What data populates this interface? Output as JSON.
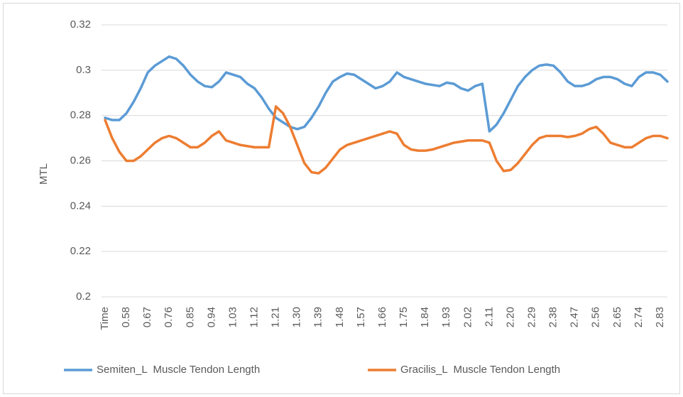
{
  "chart_data": {
    "type": "line",
    "ylabel": "MTL",
    "categories": [
      "Time",
      null,
      null,
      "0.58",
      null,
      null,
      "0.67",
      null,
      null,
      "0.76",
      null,
      null,
      "0.85",
      null,
      null,
      "0.94",
      null,
      null,
      "1.03",
      null,
      null,
      "1.12",
      null,
      null,
      "1.21",
      null,
      null,
      "1.30",
      null,
      null,
      "1.39",
      null,
      null,
      "1.48",
      null,
      null,
      "1.57",
      null,
      null,
      "1.66",
      null,
      null,
      "1.75",
      null,
      null,
      "1.84",
      null,
      null,
      "1.93",
      null,
      null,
      "2.02",
      null,
      null,
      "2.11",
      null,
      null,
      "2.20",
      null,
      null,
      "2.29",
      null,
      null,
      "2.38",
      null,
      null,
      "2.47",
      null,
      null,
      "2.56",
      null,
      null,
      "2.65",
      null,
      null,
      "2.74",
      null,
      null,
      "2.83",
      null
    ],
    "series": [
      {
        "name": "Semiten_L  Muscle Tendon Length",
        "color": "#5b9bd5",
        "values": [
          0.279,
          0.278,
          0.278,
          0.281,
          0.286,
          0.292,
          0.299,
          0.302,
          0.304,
          0.306,
          0.305,
          0.302,
          0.298,
          0.295,
          0.293,
          0.2925,
          0.295,
          0.299,
          0.298,
          0.297,
          0.294,
          0.292,
          0.288,
          0.283,
          0.279,
          0.277,
          0.275,
          0.274,
          0.275,
          0.279,
          0.284,
          0.29,
          0.295,
          0.297,
          0.2985,
          0.298,
          0.296,
          0.294,
          0.292,
          0.293,
          0.295,
          0.299,
          0.297,
          0.296,
          0.295,
          0.294,
          0.2935,
          0.293,
          0.2945,
          0.294,
          0.292,
          0.291,
          0.293,
          0.294,
          0.273,
          0.276,
          0.281,
          0.287,
          0.293,
          0.297,
          0.3,
          0.302,
          0.3025,
          0.302,
          0.299,
          0.295,
          0.293,
          0.293,
          0.294,
          0.296,
          0.297,
          0.297,
          0.296,
          0.294,
          0.293,
          0.297,
          0.299,
          0.299,
          0.298,
          0.295
        ]
      },
      {
        "name": "Gracilis_L  Muscle Tendon Length",
        "color": "#ed7d31",
        "values": [
          0.278,
          0.27,
          0.264,
          0.26,
          0.26,
          0.262,
          0.265,
          0.268,
          0.27,
          0.271,
          0.27,
          0.268,
          0.266,
          0.266,
          0.268,
          0.271,
          0.273,
          0.269,
          0.268,
          0.267,
          0.2665,
          0.266,
          0.266,
          0.266,
          0.284,
          0.281,
          0.275,
          0.267,
          0.259,
          0.255,
          0.2545,
          0.257,
          0.261,
          0.265,
          0.267,
          0.268,
          0.269,
          0.27,
          0.271,
          0.272,
          0.273,
          0.272,
          0.267,
          0.265,
          0.2645,
          0.2645,
          0.265,
          0.266,
          0.267,
          0.268,
          0.2685,
          0.269,
          0.269,
          0.269,
          0.268,
          0.26,
          0.2555,
          0.256,
          0.259,
          0.263,
          0.267,
          0.27,
          0.271,
          0.271,
          0.271,
          0.2705,
          0.271,
          0.272,
          0.274,
          0.275,
          0.272,
          0.268,
          0.267,
          0.266,
          0.266,
          0.268,
          0.27,
          0.271,
          0.271,
          0.27
        ]
      }
    ],
    "ylim": [
      0.2,
      0.32
    ],
    "yticks": [
      0.2,
      0.22,
      0.24,
      0.26,
      0.28,
      0.3,
      0.32
    ],
    "grid": true,
    "legend": "bottom"
  }
}
